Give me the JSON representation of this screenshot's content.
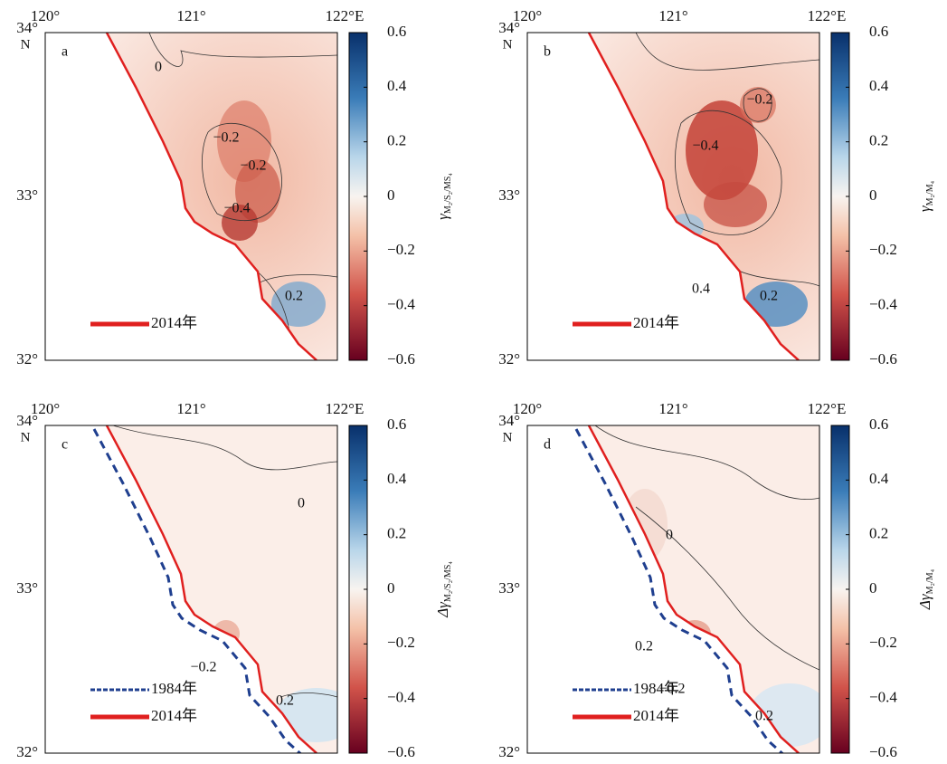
{
  "clim": [
    -0.6,
    0.6
  ],
  "panels": [
    {
      "label": "a",
      "xticks": [
        "120°",
        "121°",
        "122°E"
      ],
      "yticks": [
        "34°",
        "33°",
        "32°"
      ],
      "north": "N",
      "colorbar": {
        "ticks": [
          0.6,
          0.4,
          0.2,
          0,
          {
            "value": -0.2,
            "label": "−0.2"
          },
          {
            "value": -0.4,
            "label": "−0.4"
          },
          {
            "value": -0.6,
            "label": "−0.6"
          }
        ],
        "symbol": "γ",
        "subscript": "M₂/S₂/MS₄"
      },
      "legend": [
        {
          "label": "2014年",
          "style": "solid",
          "color": "#e0201f"
        }
      ],
      "contour_labels": [
        "0",
        "−0.2",
        "−0.2",
        "−0.4",
        "0.2"
      ]
    },
    {
      "label": "b",
      "xticks": [
        "120°",
        "121°",
        "122°E"
      ],
      "yticks": [
        "34°",
        "33°",
        "32°"
      ],
      "north": "N",
      "colorbar": {
        "ticks": [
          0.6,
          0.4,
          0.2,
          0,
          {
            "value": -0.2,
            "label": "−0.2"
          },
          {
            "value": -0.4,
            "label": "−0.4"
          },
          {
            "value": -0.6,
            "label": "−0.6"
          }
        ],
        "symbol": "γ",
        "subscript": "M₂/M₄"
      },
      "legend": [
        {
          "label": "2014年",
          "style": "solid",
          "color": "#e0201f"
        }
      ],
      "contour_labels": [
        "−0.2",
        "−0.4",
        "0.4",
        "0.2"
      ]
    },
    {
      "label": "c",
      "xticks": [
        "120°",
        "121°",
        "122°E"
      ],
      "yticks": [
        "34°",
        "33°",
        "32°"
      ],
      "north": "N",
      "colorbar": {
        "ticks": [
          0.6,
          0.4,
          0.2,
          0,
          {
            "value": -0.2,
            "label": "−0.2"
          },
          {
            "value": -0.4,
            "label": "−0.4"
          },
          {
            "value": -0.6,
            "label": "−0.6"
          }
        ],
        "symbol": "Δγ",
        "subscript": "M₂/S₂/MS₄"
      },
      "legend": [
        {
          "label": "1984年",
          "style": "dashed",
          "color": "#1f3f8f"
        },
        {
          "label": "2014年",
          "style": "solid",
          "color": "#e0201f"
        }
      ],
      "contour_labels": [
        "0",
        "−0.2",
        "0.2"
      ]
    },
    {
      "label": "d",
      "xticks": [
        "120°",
        "121°",
        "122°E"
      ],
      "yticks": [
        "34°",
        "33°",
        "32°"
      ],
      "north": "N",
      "colorbar": {
        "ticks": [
          0.6,
          0.4,
          0.2,
          0,
          {
            "value": -0.2,
            "label": "−0.2"
          },
          {
            "value": -0.4,
            "label": "−0.4"
          },
          {
            "value": -0.6,
            "label": "−0.6"
          }
        ],
        "symbol": "Δγ",
        "subscript": "M₂/M₄"
      },
      "legend": [
        {
          "label": "1984年",
          "style": "dashed",
          "color": "#1f3f8f"
        },
        {
          "label": "2014年",
          "style": "solid",
          "color": "#e0201f"
        }
      ],
      "contour_labels": [
        "0",
        "0.2",
        "−0.2",
        "0.2"
      ]
    }
  ]
}
